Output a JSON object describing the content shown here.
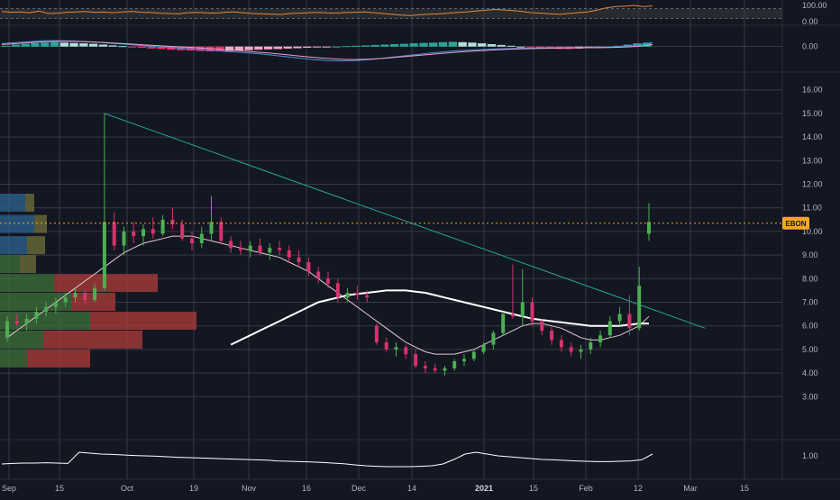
{
  "chart_data": [
    {
      "type": "line",
      "panel": "oscillator",
      "yticks": [
        "100.00",
        "0.00"
      ],
      "ylim": [
        0,
        100
      ],
      "band": [
        20,
        80
      ],
      "series": [
        {
          "color": "#e8873a",
          "values": [
            62,
            58,
            60,
            55,
            65,
            50,
            52,
            58,
            60,
            63,
            57,
            59,
            55,
            60,
            62,
            58,
            56,
            52,
            50,
            48,
            55,
            57,
            54,
            52,
            58,
            60,
            55,
            50,
            48,
            46,
            44,
            50,
            52,
            55,
            57,
            54,
            52,
            56,
            58,
            60,
            55,
            50,
            45,
            40,
            38,
            42,
            46,
            48,
            52,
            56,
            60,
            65,
            70,
            75,
            72,
            68,
            62,
            55,
            52,
            48,
            45,
            50,
            55,
            60,
            70,
            85,
            92,
            95,
            100,
            92,
            97
          ]
        }
      ]
    },
    {
      "type": "bar",
      "panel": "macd",
      "yticks": [
        "0.00"
      ],
      "ylim": [
        -1.1,
        0.8
      ],
      "histogram": [
        0.02,
        0.05,
        0.07,
        0.09,
        0.1,
        0.11,
        0.1,
        0.09,
        0.08,
        0.07,
        0.05,
        0.03,
        0.01,
        -0.01,
        -0.03,
        -0.05,
        -0.06,
        -0.08,
        -0.09,
        -0.1,
        -0.11,
        -0.12,
        -0.12,
        -0.11,
        -0.1,
        -0.09,
        -0.08,
        -0.07,
        -0.06,
        -0.05,
        -0.04,
        -0.03,
        -0.02,
        -0.01,
        0.0,
        0.01,
        0.02,
        0.03,
        0.04,
        0.05,
        0.06,
        0.07,
        0.08,
        0.09,
        0.1,
        0.11,
        0.12,
        0.11,
        0.1,
        0.08,
        0.06,
        0.04,
        0.02,
        0.0,
        -0.02,
        -0.04,
        -0.05,
        -0.06,
        -0.06,
        -0.05,
        -0.04,
        -0.02,
        0.0,
        0.02,
        0.05,
        0.08,
        0.1
      ],
      "series": [
        {
          "color": "#4a8fe0",
          "values": [
            0.15,
            0.2,
            0.25,
            0.3,
            0.3,
            0.28,
            0.25,
            0.2,
            0.15,
            0.1,
            0.05,
            0.0,
            -0.05,
            -0.1,
            -0.15,
            -0.2,
            -0.25,
            -0.3,
            -0.35,
            -0.42,
            -0.5,
            -0.58,
            -0.65,
            -0.7,
            -0.72,
            -0.7,
            -0.65,
            -0.58,
            -0.5,
            -0.42,
            -0.35,
            -0.28,
            -0.22,
            -0.18,
            -0.15,
            -0.12,
            -0.1,
            -0.08,
            -0.07,
            -0.06,
            -0.05,
            -0.05,
            -0.04,
            -0.02,
            0.02,
            0.08,
            0.2
          ]
        },
        {
          "color": "#e8a0c8",
          "values": [
            0.1,
            0.15,
            0.2,
            0.24,
            0.26,
            0.26,
            0.24,
            0.21,
            0.17,
            0.13,
            0.09,
            0.05,
            0.01,
            -0.03,
            -0.07,
            -0.12,
            -0.17,
            -0.22,
            -0.27,
            -0.33,
            -0.4,
            -0.47,
            -0.54,
            -0.6,
            -0.64,
            -0.65,
            -0.63,
            -0.59,
            -0.53,
            -0.47,
            -0.41,
            -0.35,
            -0.29,
            -0.24,
            -0.2,
            -0.16,
            -0.13,
            -0.11,
            -0.09,
            -0.08,
            -0.07,
            -0.06,
            -0.06,
            -0.05,
            -0.03,
            0.01,
            0.1
          ]
        }
      ]
    },
    {
      "type": "candlestick",
      "panel": "price",
      "symbol": "EBON",
      "last_price": 10.35,
      "yticks": [
        "16.00",
        "15.00",
        "14.00",
        "13.00",
        "12.00",
        "11.00",
        "10.00",
        "9.00",
        "8.00",
        "7.00",
        "6.00",
        "5.00",
        "4.00",
        "3.00"
      ],
      "ylim": [
        2.4,
        16.6
      ],
      "xticks": [
        "Sep",
        "15",
        "Oct",
        "19",
        "Nov",
        "16",
        "Dec",
        "14",
        "2021",
        "15",
        "Feb",
        "12",
        "Mar",
        "15"
      ],
      "candles": [
        [
          5.5,
          6.4,
          5.3,
          6.2
        ],
        [
          6.2,
          6.5,
          6.0,
          6.1
        ],
        [
          6.1,
          6.5,
          5.8,
          6.3
        ],
        [
          6.3,
          6.8,
          6.1,
          6.6
        ],
        [
          6.6,
          7.0,
          6.4,
          6.8
        ],
        [
          6.8,
          7.2,
          6.5,
          7.0
        ],
        [
          7.0,
          7.4,
          6.8,
          7.2
        ],
        [
          7.2,
          7.6,
          7.0,
          7.4
        ],
        [
          7.4,
          7.5,
          6.9,
          7.1
        ],
        [
          7.1,
          7.8,
          7.0,
          7.6
        ],
        [
          7.6,
          15.0,
          7.5,
          10.4
        ],
        [
          10.4,
          10.8,
          9.2,
          9.4
        ],
        [
          9.4,
          10.2,
          9.0,
          10.0
        ],
        [
          10.0,
          10.4,
          9.5,
          9.8
        ],
        [
          9.8,
          10.3,
          9.4,
          10.1
        ],
        [
          10.1,
          10.6,
          9.7,
          9.9
        ],
        [
          9.9,
          10.7,
          9.8,
          10.5
        ],
        [
          10.5,
          11.0,
          10.1,
          10.3
        ],
        [
          10.3,
          10.5,
          9.6,
          9.7
        ],
        [
          9.7,
          10.0,
          9.2,
          9.5
        ],
        [
          9.5,
          10.2,
          9.3,
          9.9
        ],
        [
          9.9,
          11.5,
          9.6,
          10.4
        ],
        [
          10.4,
          10.6,
          9.5,
          9.6
        ],
        [
          9.6,
          9.8,
          9.1,
          9.3
        ],
        [
          9.3,
          9.6,
          9.0,
          9.2
        ],
        [
          9.2,
          9.6,
          8.9,
          9.4
        ],
        [
          9.4,
          9.7,
          9.0,
          9.1
        ],
        [
          9.1,
          9.5,
          8.8,
          9.3
        ],
        [
          9.3,
          9.6,
          9.0,
          9.2
        ],
        [
          9.2,
          9.4,
          8.7,
          8.9
        ],
        [
          8.9,
          9.2,
          8.5,
          8.7
        ],
        [
          8.7,
          8.9,
          8.1,
          8.3
        ],
        [
          8.3,
          8.5,
          7.8,
          8.0
        ],
        [
          8.0,
          8.3,
          7.6,
          7.8
        ],
        [
          7.8,
          8.0,
          7.0,
          7.2
        ],
        [
          7.2,
          7.6,
          7.0,
          7.4
        ],
        [
          7.4,
          7.7,
          7.1,
          7.3
        ],
        [
          7.3,
          7.5,
          7.0,
          7.2
        ],
        [
          6.0,
          6.1,
          5.2,
          5.3
        ],
        [
          5.3,
          5.5,
          4.9,
          5.0
        ],
        [
          5.0,
          5.3,
          4.7,
          5.1
        ],
        [
          5.1,
          5.2,
          4.6,
          4.8
        ],
        [
          4.8,
          5.0,
          4.2,
          4.3
        ],
        [
          4.3,
          4.5,
          4.0,
          4.2
        ],
        [
          4.2,
          4.4,
          4.0,
          4.1
        ],
        [
          4.1,
          4.3,
          3.9,
          4.2
        ],
        [
          4.2,
          4.6,
          4.1,
          4.5
        ],
        [
          4.5,
          4.8,
          4.3,
          4.6
        ],
        [
          4.6,
          5.0,
          4.5,
          4.9
        ],
        [
          4.9,
          5.3,
          4.8,
          5.2
        ],
        [
          5.2,
          5.8,
          5.0,
          5.7
        ],
        [
          5.7,
          6.6,
          5.6,
          6.5
        ],
        [
          6.5,
          8.6,
          6.3,
          6.4
        ],
        [
          6.4,
          8.4,
          6.0,
          7.0
        ],
        [
          7.0,
          7.2,
          6.0,
          6.2
        ],
        [
          6.2,
          6.3,
          5.6,
          5.8
        ],
        [
          5.8,
          6.0,
          5.2,
          5.4
        ],
        [
          5.4,
          5.6,
          4.9,
          5.1
        ],
        [
          5.1,
          5.3,
          4.7,
          4.9
        ],
        [
          4.9,
          5.2,
          4.6,
          5.0
        ],
        [
          5.0,
          5.5,
          4.8,
          5.3
        ],
        [
          5.3,
          5.8,
          5.1,
          5.6
        ],
        [
          5.6,
          6.4,
          5.5,
          6.2
        ],
        [
          6.2,
          6.8,
          6.0,
          6.5
        ],
        [
          6.5,
          7.3,
          5.6,
          5.9
        ],
        [
          5.9,
          8.5,
          5.8,
          7.7
        ],
        [
          9.9,
          11.2,
          9.6,
          10.4
        ]
      ],
      "sma_short": [
        5.5,
        5.8,
        6.1,
        6.4,
        6.7,
        7.0,
        7.3,
        7.6,
        7.9,
        8.2,
        8.5,
        8.8,
        9.1,
        9.3,
        9.5,
        9.6,
        9.7,
        9.8,
        9.8,
        9.8,
        9.7,
        9.6,
        9.5,
        9.4,
        9.3,
        9.2,
        9.1,
        9.0,
        8.9,
        8.7,
        8.5,
        8.3,
        8.0,
        7.7,
        7.4,
        7.1,
        6.8,
        6.5,
        6.2,
        5.9,
        5.6,
        5.3,
        5.1,
        4.9,
        4.8,
        4.8,
        4.8,
        4.9,
        5.0,
        5.2,
        5.4,
        5.6,
        5.8,
        6.0,
        6.1,
        6.1,
        6.0,
        5.9,
        5.7,
        5.5,
        5.4,
        5.4,
        5.5,
        5.6,
        5.8,
        6.0,
        6.4
      ],
      "sma_long": [
        5.2,
        5.4,
        5.6,
        5.8,
        6.0,
        6.2,
        6.4,
        6.6,
        6.8,
        7.0,
        7.1,
        7.2,
        7.3,
        7.35,
        7.4,
        7.45,
        7.5,
        7.5,
        7.5,
        7.45,
        7.4,
        7.3,
        7.2,
        7.1,
        7.0,
        6.9,
        6.8,
        6.7,
        6.6,
        6.5,
        6.4,
        6.3,
        6.25,
        6.2,
        6.15,
        6.1,
        6.05,
        6.0,
        6.0,
        6.0,
        6.0,
        6.05,
        6.1,
        6.1
      ],
      "trendline": {
        "from": [
          15.0,
          10
        ],
        "to": [
          6.2,
          69
        ]
      },
      "volume_profile": [
        {
          "price": 11.2,
          "buy": 28,
          "sell": 10
        },
        {
          "price": 10.3,
          "buy": 38,
          "sell": 14
        },
        {
          "price": 9.4,
          "buy": 30,
          "sell": 20
        },
        {
          "price": 8.6,
          "buy": 22,
          "sell": 18
        },
        {
          "price": 7.8,
          "buy": 60,
          "sell": 115
        },
        {
          "price": 7.0,
          "buy": 80,
          "sell": 48
        },
        {
          "price": 6.2,
          "buy": 100,
          "sell": 118
        },
        {
          "price": 5.4,
          "buy": 48,
          "sell": 110
        },
        {
          "price": 4.6,
          "buy": 30,
          "sell": 70
        }
      ]
    },
    {
      "type": "line",
      "panel": "volatility",
      "yticks": [
        "1.00"
      ],
      "ylim": [
        0,
        1.6
      ],
      "series": [
        {
          "color": "#ffffff",
          "values": [
            0.55,
            0.58,
            0.6,
            0.6,
            0.62,
            0.6,
            0.58,
            1.2,
            1.15,
            1.1,
            1.08,
            1.05,
            1.02,
            1.0,
            0.98,
            0.95,
            0.92,
            0.9,
            0.88,
            0.86,
            0.84,
            0.82,
            0.8,
            0.78,
            0.76,
            0.72,
            0.7,
            0.68,
            0.66,
            0.64,
            0.6,
            0.56,
            0.5,
            0.45,
            0.42,
            0.4,
            0.4,
            0.4,
            0.42,
            0.45,
            0.55,
            0.8,
            1.1,
            1.2,
            1.1,
            1.0,
            0.95,
            0.9,
            0.85,
            0.8,
            0.78,
            0.75,
            0.72,
            0.7,
            0.68,
            0.68,
            0.7,
            0.72,
            0.78,
            1.1
          ]
        }
      ]
    }
  ],
  "colors": {
    "up": "#26a69a",
    "down": "#ef5350",
    "up_candle": "#4caf50",
    "down_candle": "#d6336c",
    "grid": "#363a45",
    "label": "#b2b5be",
    "price_line": "#f5a623",
    "background": "#131722"
  }
}
